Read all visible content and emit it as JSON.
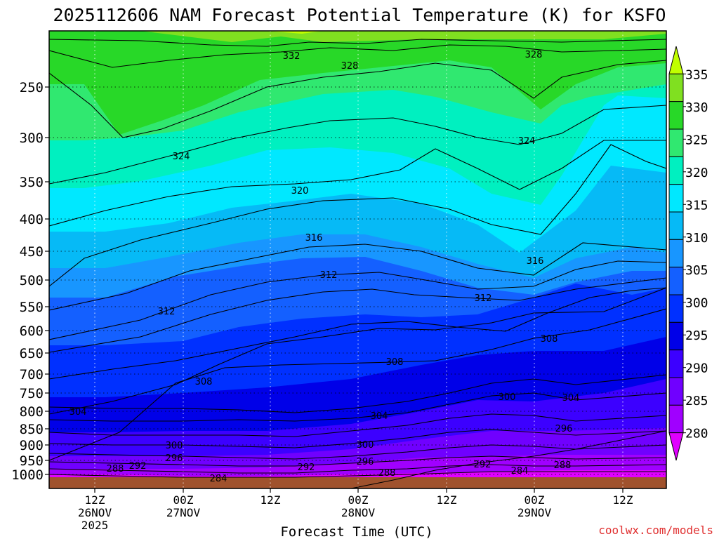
{
  "chart_data": {
    "type": "heatmap",
    "title": "2025112606 NAM Forecast Potential Temperature (K) for KSFO",
    "xlabel": "Forecast Time (UTC)",
    "ylabel": "",
    "credit": "coolwx.com/models",
    "y_axis": {
      "scale": "log-pressure",
      "reversed": true,
      "ticks": [
        250,
        300,
        350,
        400,
        450,
        500,
        550,
        600,
        650,
        700,
        750,
        800,
        850,
        900,
        950,
        1000
      ],
      "tick_labels": [
        "250",
        "300",
        "350",
        "400",
        "450",
        "500",
        "550",
        "600",
        "650",
        "700",
        "750",
        "800",
        "850",
        "900",
        "950",
        "1000"
      ],
      "gridlines": true
    },
    "x_axis": {
      "ticks": [
        {
          "line1": "12Z",
          "line2": "26NOV",
          "line3": "2025"
        },
        {
          "line1": "00Z",
          "line2": "27NOV",
          "line3": ""
        },
        {
          "line1": "12Z",
          "line2": "",
          "line3": ""
        },
        {
          "line1": "00Z",
          "line2": "28NOV",
          "line3": ""
        },
        {
          "line1": "12Z",
          "line2": "",
          "line3": ""
        },
        {
          "line1": "00Z",
          "line2": "29NOV",
          "line3": ""
        },
        {
          "line1": "12Z",
          "line2": "",
          "line3": ""
        }
      ],
      "gridlines": true
    },
    "colorbar": {
      "levels": [
        280,
        285,
        290,
        295,
        300,
        305,
        310,
        315,
        320,
        325,
        330,
        335
      ],
      "labels": [
        "280",
        "285",
        "290",
        "295",
        "300",
        "305",
        "310",
        "315",
        "320",
        "325",
        "330",
        "335"
      ],
      "colors": [
        "#e000ff",
        "#a000ff",
        "#7000ff",
        "#3c00ff",
        "#0000e8",
        "#0030ff",
        "#1460ff",
        "#1896ff",
        "#06baf6",
        "#00e8ff",
        "#00f0c0",
        "#30e870",
        "#28d828",
        "#80e020",
        "#c0ff00"
      ],
      "extend": "both"
    },
    "terrain_color": "#a0522d",
    "contour_interval": 4,
    "contour_labels": [
      {
        "text": "332",
        "pos": "top-left"
      },
      {
        "text": "328",
        "pos": "top-center"
      },
      {
        "text": "328",
        "pos": "top-right"
      },
      {
        "text": "324",
        "pos": "upper-left"
      },
      {
        "text": "324",
        "pos": "upper-right"
      },
      {
        "text": "320",
        "pos": "upper-center"
      },
      {
        "text": "316",
        "pos": "center-left"
      },
      {
        "text": "316",
        "pos": "center-right"
      },
      {
        "text": "312",
        "pos": "mid-left"
      },
      {
        "text": "312",
        "pos": "mid-center"
      },
      {
        "text": "312",
        "pos": "mid-right"
      },
      {
        "text": "308",
        "pos": "mid-right"
      },
      {
        "text": "308",
        "pos": "lower-center"
      },
      {
        "text": "308",
        "pos": "lower-left"
      },
      {
        "text": "304",
        "pos": "lower-left"
      },
      {
        "text": "304",
        "pos": "lower-center"
      },
      {
        "text": "300",
        "pos": "lower-right"
      },
      {
        "text": "304",
        "pos": "lower-right"
      },
      {
        "text": "296",
        "pos": "lower-right"
      },
      {
        "text": "300",
        "pos": "bottom-left"
      },
      {
        "text": "296",
        "pos": "bottom-left"
      },
      {
        "text": "300",
        "pos": "bottom-center"
      },
      {
        "text": "296",
        "pos": "bottom-center"
      },
      {
        "text": "292",
        "pos": "bottom-right"
      },
      {
        "text": "288",
        "pos": "bottom-right"
      },
      {
        "text": "284",
        "pos": "bottom-right"
      },
      {
        "text": "288",
        "pos": "bottom-left"
      },
      {
        "text": "292",
        "pos": "bottom-left"
      },
      {
        "text": "284",
        "pos": "bottom-left"
      },
      {
        "text": "292",
        "pos": "bottom-center"
      },
      {
        "text": "288",
        "pos": "bottom-center"
      }
    ]
  }
}
